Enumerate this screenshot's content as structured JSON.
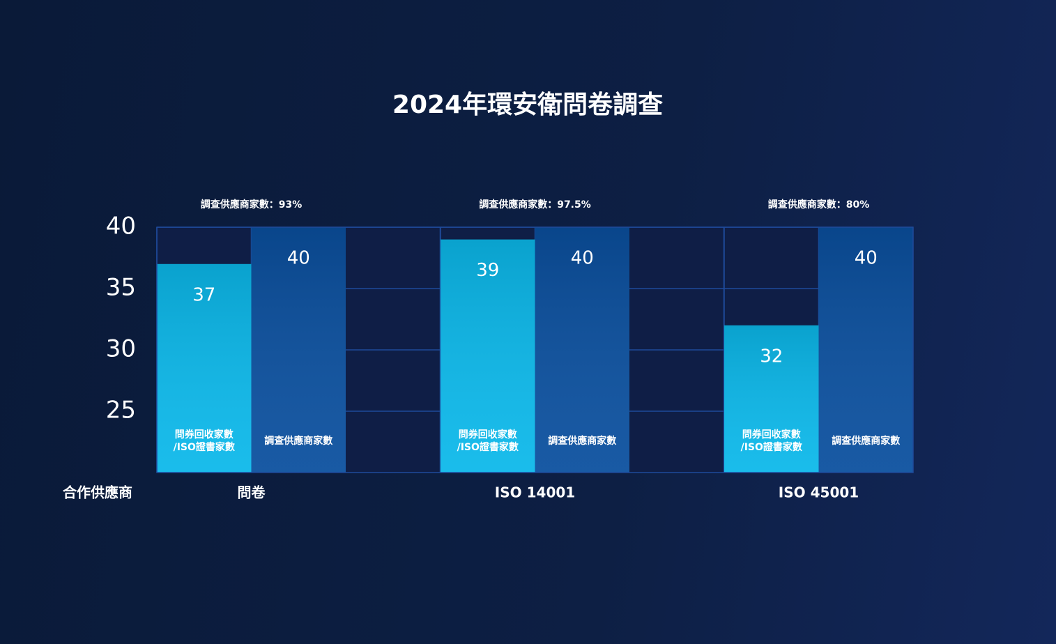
{
  "chart_data": {
    "type": "bar",
    "title": "2024年環安衛問卷調查",
    "x_label": "合作供應商",
    "categories": [
      "問卷",
      "ISO 14001",
      "ISO 45001"
    ],
    "annotations": [
      "調查供應商家數：93%",
      "調查供應商家數：97.5%",
      "調查供應商家數：80%"
    ],
    "series": [
      {
        "name": "問券回收家數\n/ISO證書家數",
        "color": "#0bb8ea",
        "values": [
          37,
          39,
          32
        ]
      },
      {
        "name": "調查供應商家數",
        "color": "#0a4f9e",
        "values": [
          40,
          40,
          40
        ]
      }
    ],
    "ylim": [
      20,
      40
    ],
    "yticks": [
      25,
      30,
      35,
      40
    ],
    "grid": true
  }
}
